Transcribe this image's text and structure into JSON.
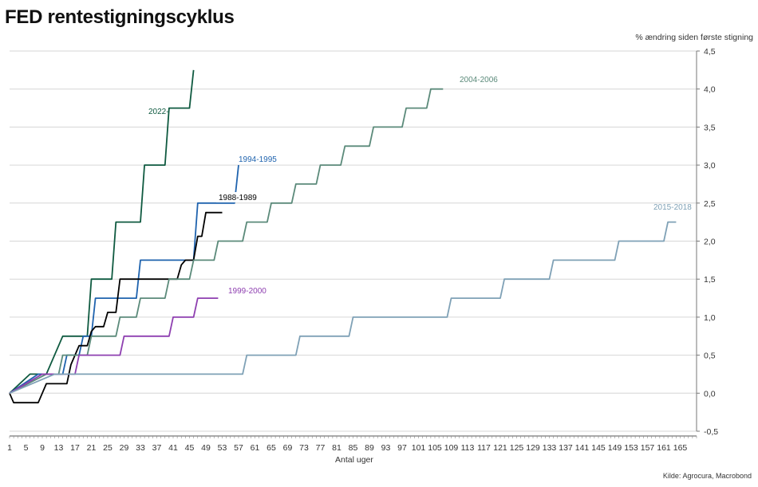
{
  "chart_data": {
    "type": "line",
    "title": "FED rentestigningscyklus",
    "ylabel": "% ændring siden første stigning",
    "xlabel": "Antal uger",
    "source": "Kilde: Agrocura, Macrobond",
    "xlim": [
      1,
      169
    ],
    "ylim": [
      -0.5,
      4.5
    ],
    "y_ticks": [
      "4,5",
      "4,0",
      "3,5",
      "3,0",
      "2,5",
      "2,0",
      "1,5",
      "1,0",
      "0,5",
      "0,0",
      "-0,5"
    ],
    "y_tick_values": [
      4.5,
      4.0,
      3.5,
      3.0,
      2.5,
      2.0,
      1.5,
      1.0,
      0.5,
      0.0,
      -0.5
    ],
    "x_ticks": [
      "1",
      "5",
      "9",
      "13",
      "17",
      "21",
      "25",
      "29",
      "33",
      "37",
      "41",
      "45",
      "49",
      "53",
      "57",
      "61",
      "65",
      "69",
      "73",
      "77",
      "81",
      "85",
      "89",
      "93",
      "97",
      "101",
      "105",
      "109",
      "113",
      "117",
      "121",
      "125",
      "129",
      "133",
      "137",
      "141",
      "145",
      "149",
      "153",
      "157",
      "161",
      "165"
    ],
    "grid": true,
    "legend": "inline labels",
    "series": [
      {
        "name": "2022-",
        "color": "#0f5a40",
        "steps": [
          [
            1,
            0
          ],
          [
            6,
            0.25
          ],
          [
            10,
            0.25
          ],
          [
            14,
            0.75
          ],
          [
            20,
            0.75
          ],
          [
            21,
            1.5
          ],
          [
            26,
            1.5
          ],
          [
            27,
            2.25
          ],
          [
            33,
            2.25
          ],
          [
            34,
            3.0
          ],
          [
            39,
            3.0
          ],
          [
            40,
            3.75
          ],
          [
            45,
            3.75
          ],
          [
            46,
            4.25
          ]
        ]
      },
      {
        "name": "1994-1995",
        "color": "#1f63ae",
        "steps": [
          [
            1,
            0
          ],
          [
            8,
            0.25
          ],
          [
            14,
            0.25
          ],
          [
            15,
            0.5
          ],
          [
            18,
            0.5
          ],
          [
            19,
            0.75
          ],
          [
            21,
            0.75
          ],
          [
            22,
            1.25
          ],
          [
            32,
            1.25
          ],
          [
            33,
            1.75
          ],
          [
            46,
            1.75
          ],
          [
            47,
            2.5
          ],
          [
            50,
            2.5
          ],
          [
            56,
            2.5
          ],
          [
            57,
            3.0
          ]
        ]
      },
      {
        "name": "1988-1989",
        "color": "#000000",
        "points": [
          [
            1,
            0
          ],
          [
            2,
            -0.125
          ],
          [
            8,
            -0.125
          ],
          [
            9,
            0
          ],
          [
            10,
            0.125
          ],
          [
            15,
            0.125
          ],
          [
            16,
            0.375
          ],
          [
            17,
            0.5
          ],
          [
            18,
            0.625
          ],
          [
            20,
            0.625
          ],
          [
            21,
            0.8125
          ],
          [
            22,
            0.875
          ],
          [
            24,
            0.875
          ],
          [
            25,
            1.0625
          ],
          [
            27,
            1.0625
          ],
          [
            28,
            1.5
          ],
          [
            33,
            1.5
          ],
          [
            37,
            1.5
          ],
          [
            42,
            1.5
          ],
          [
            43,
            1.6875
          ],
          [
            44,
            1.75
          ],
          [
            46,
            1.75
          ],
          [
            47,
            2.0625
          ],
          [
            48,
            2.0625
          ],
          [
            49,
            2.375
          ],
          [
            53,
            2.375
          ]
        ]
      },
      {
        "name": "2004-2006",
        "color": "#5b8a7a",
        "steps": [
          [
            1,
            0
          ],
          [
            10,
            0.25
          ],
          [
            13,
            0.25
          ],
          [
            14,
            0.5
          ],
          [
            20,
            0.5
          ],
          [
            21,
            0.75
          ],
          [
            27,
            0.75
          ],
          [
            28,
            1.0
          ],
          [
            32,
            1.0
          ],
          [
            33,
            1.25
          ],
          [
            39,
            1.25
          ],
          [
            40,
            1.5
          ],
          [
            45,
            1.5
          ],
          [
            46,
            1.75
          ],
          [
            51,
            1.75
          ],
          [
            52,
            2.0
          ],
          [
            58,
            2.0
          ],
          [
            59,
            2.25
          ],
          [
            64,
            2.25
          ],
          [
            65,
            2.5
          ],
          [
            70,
            2.5
          ],
          [
            71,
            2.75
          ],
          [
            76,
            2.75
          ],
          [
            77,
            3.0
          ],
          [
            82,
            3.0
          ],
          [
            83,
            3.25
          ],
          [
            89,
            3.25
          ],
          [
            90,
            3.5
          ],
          [
            97,
            3.5
          ],
          [
            98,
            3.75
          ],
          [
            103,
            3.75
          ],
          [
            104,
            4.0
          ],
          [
            107,
            4.0
          ]
        ]
      },
      {
        "name": "1999-2000",
        "color": "#8e3fb0",
        "steps": [
          [
            1,
            0
          ],
          [
            9,
            0.25
          ],
          [
            17,
            0.25
          ],
          [
            18,
            0.5
          ],
          [
            28,
            0.5
          ],
          [
            29,
            0.75
          ],
          [
            40,
            0.75
          ],
          [
            41,
            1.0
          ],
          [
            46,
            1.0
          ],
          [
            47,
            1.25
          ],
          [
            52,
            1.25
          ]
        ]
      },
      {
        "name": "2015-2018",
        "color": "#7fa1b6",
        "steps": [
          [
            1,
            0
          ],
          [
            12,
            0.25
          ],
          [
            58,
            0.25
          ],
          [
            59,
            0.5
          ],
          [
            71,
            0.5
          ],
          [
            72,
            0.75
          ],
          [
            84,
            0.75
          ],
          [
            85,
            1.0
          ],
          [
            108,
            1.0
          ],
          [
            109,
            1.25
          ],
          [
            121,
            1.25
          ],
          [
            122,
            1.5
          ],
          [
            133,
            1.5
          ],
          [
            134,
            1.75
          ],
          [
            149,
            1.75
          ],
          [
            150,
            2.0
          ],
          [
            161,
            2.0
          ],
          [
            162,
            2.25
          ],
          [
            164,
            2.25
          ]
        ]
      }
    ]
  }
}
